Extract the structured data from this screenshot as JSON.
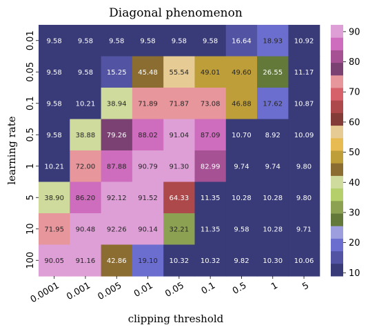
{
  "chart_data": {
    "type": "heatmap",
    "title": "Diagonal phenomenon",
    "xlabel": "clipping threshold",
    "ylabel": "learning rate",
    "x_categories": [
      "0.0001",
      "0.001",
      "0.005",
      "0.01",
      "0.05",
      "0.1",
      "0.5",
      "1",
      "5"
    ],
    "y_categories": [
      "0.01",
      "0.05",
      "0.1",
      "0.5",
      "1",
      "5",
      "10",
      "100"
    ],
    "values": [
      [
        9.58,
        9.58,
        9.58,
        9.58,
        9.58,
        9.58,
        16.64,
        18.93,
        10.92
      ],
      [
        9.58,
        9.58,
        15.25,
        45.48,
        55.54,
        49.01,
        49.6,
        26.55,
        11.17
      ],
      [
        9.58,
        10.21,
        38.94,
        71.89,
        71.87,
        73.08,
        46.88,
        17.62,
        10.87
      ],
      [
        9.58,
        38.88,
        79.26,
        88.02,
        91.04,
        87.09,
        10.7,
        8.92,
        10.09
      ],
      [
        10.21,
        72.0,
        87.88,
        90.79,
        91.3,
        82.99,
        9.74,
        9.74,
        9.8
      ],
      [
        38.9,
        86.2,
        92.12,
        91.52,
        64.33,
        11.35,
        10.28,
        10.28,
        9.8
      ],
      [
        71.95,
        90.48,
        92.26,
        90.14,
        32.21,
        11.35,
        9.58,
        10.28,
        9.71
      ],
      [
        90.05,
        91.16,
        42.86,
        19.1,
        10.32,
        10.32,
        9.82,
        10.3,
        10.06
      ]
    ],
    "colormap": "tab20b",
    "colorbar": {
      "range": [
        8.92,
        92.26
      ],
      "ticks": [
        10,
        20,
        30,
        40,
        50,
        60,
        70,
        80,
        90
      ]
    },
    "grid": false,
    "annotations": "cell values shown with 2 decimals"
  }
}
